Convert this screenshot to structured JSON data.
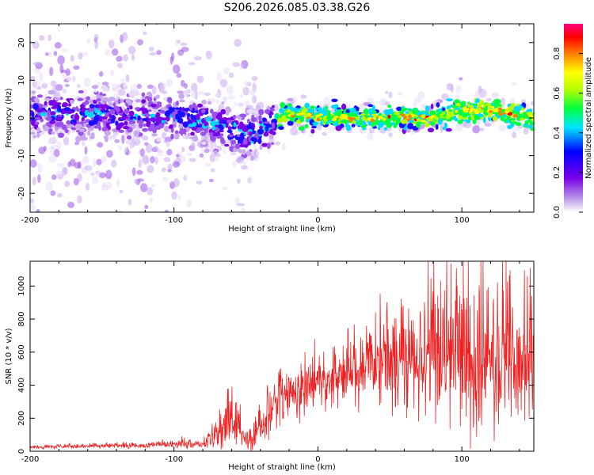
{
  "title": "S206.2026.085.03.38.G26",
  "chart_data": [
    {
      "type": "heatmap",
      "xlabel": "Height of straight line (km)",
      "ylabel": "Frequency (Hz)",
      "xlim": [
        -200,
        150
      ],
      "ylim": [
        -25,
        25
      ],
      "xticks": [
        -200,
        -100,
        0,
        100
      ],
      "yticks": [
        -20,
        -10,
        0,
        10,
        20
      ],
      "grid": false,
      "colorbar": {
        "label": "Normalized spectral amplitude",
        "range": [
          0,
          0.95
        ],
        "ticks": [
          "0.0",
          "0.2",
          "0.4",
          "0.6",
          "0.8"
        ],
        "colors": [
          "#ffffff",
          "#b58ce6",
          "#7a00e6",
          "#0000ff",
          "#00e6ff",
          "#00ff40",
          "#b4ff00",
          "#ffff00",
          "#ff8000",
          "#ff0000",
          "#ff0080"
        ]
      },
      "ridge": [
        {
          "x": -200,
          "y": 1.0
        },
        {
          "x": -150,
          "y": 1.0
        },
        {
          "x": -100,
          "y": 0.0
        },
        {
          "x": -80,
          "y": -1.0
        },
        {
          "x": -60,
          "y": -3.0
        },
        {
          "x": -50,
          "y": -5.0
        },
        {
          "x": -40,
          "y": -3.0
        },
        {
          "x": -30,
          "y": -1.0
        },
        {
          "x": -20,
          "y": 1.0
        },
        {
          "x": 0,
          "y": 0.5
        },
        {
          "x": 20,
          "y": 0.0
        },
        {
          "x": 50,
          "y": 0.0
        },
        {
          "x": 80,
          "y": 0.0
        },
        {
          "x": 100,
          "y": 2.0
        },
        {
          "x": 120,
          "y": 2.0
        },
        {
          "x": 150,
          "y": 0.0
        }
      ]
    },
    {
      "type": "line",
      "xlabel": "Height of straight line (km)",
      "ylabel": "SNR (10 * v/v)",
      "xlim": [
        -200,
        150
      ],
      "ylim": [
        0,
        1150
      ],
      "xticks": [
        -200,
        -100,
        0,
        100
      ],
      "yticks": [
        0,
        200,
        400,
        600,
        800,
        1000
      ],
      "grid": false,
      "series": [
        {
          "color": "#ee2222",
          "envelope": [
            {
              "x": -200,
              "mean": 25,
              "spread": 10
            },
            {
              "x": -120,
              "mean": 35,
              "spread": 15
            },
            {
              "x": -100,
              "mean": 45,
              "spread": 25
            },
            {
              "x": -80,
              "mean": 40,
              "spread": 30
            },
            {
              "x": -70,
              "mean": 110,
              "spread": 80
            },
            {
              "x": -60,
              "mean": 200,
              "spread": 120
            },
            {
              "x": -50,
              "mean": 80,
              "spread": 70
            },
            {
              "x": -40,
              "mean": 120,
              "spread": 100
            },
            {
              "x": -30,
              "mean": 300,
              "spread": 160
            },
            {
              "x": -20,
              "mean": 350,
              "spread": 140
            },
            {
              "x": 0,
              "mean": 410,
              "spread": 150
            },
            {
              "x": 20,
              "mean": 480,
              "spread": 200
            },
            {
              "x": 40,
              "mean": 550,
              "spread": 260
            },
            {
              "x": 60,
              "mean": 560,
              "spread": 320
            },
            {
              "x": 80,
              "mean": 580,
              "spread": 380
            },
            {
              "x": 100,
              "mean": 560,
              "spread": 420
            },
            {
              "x": 120,
              "mean": 560,
              "spread": 400
            },
            {
              "x": 150,
              "mean": 560,
              "spread": 350
            }
          ]
        }
      ]
    }
  ]
}
